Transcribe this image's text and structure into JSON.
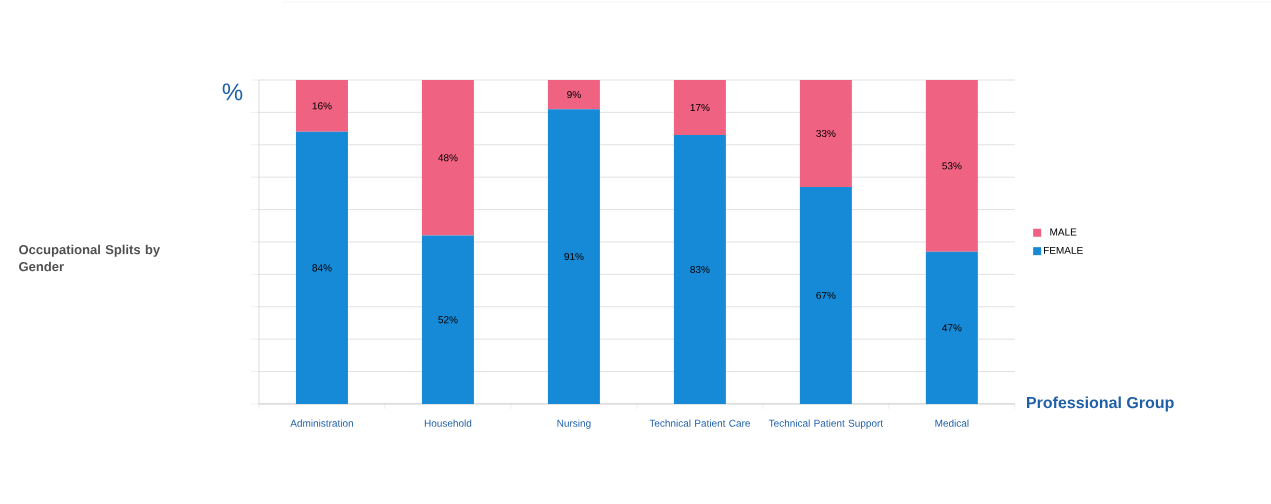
{
  "chart_data": {
    "type": "bar",
    "stacked": true,
    "title": "Occupational Splits by Gender",
    "ylabel": "%",
    "xlabel": "Professional Group",
    "categories": [
      "Administration",
      "Household",
      "Nursing",
      "Technical Patient Care",
      "Technical Patient Support",
      "Medical"
    ],
    "series": [
      {
        "name": "FEMALE",
        "color": "#168ad6",
        "values": [
          84,
          52,
          91,
          83,
          67,
          47
        ],
        "value_labels": [
          "84%",
          "52%",
          "91%",
          "83%",
          "67%",
          "47%"
        ]
      },
      {
        "name": "MALE",
        "color": "#ef6282",
        "values": [
          16,
          48,
          9,
          17,
          33,
          53
        ],
        "value_labels": [
          "16%",
          "48%",
          "9%",
          "17%",
          "33%",
          "53%"
        ]
      }
    ],
    "tick_labels": "x",
    "grid": "y",
    "legend": "right"
  }
}
